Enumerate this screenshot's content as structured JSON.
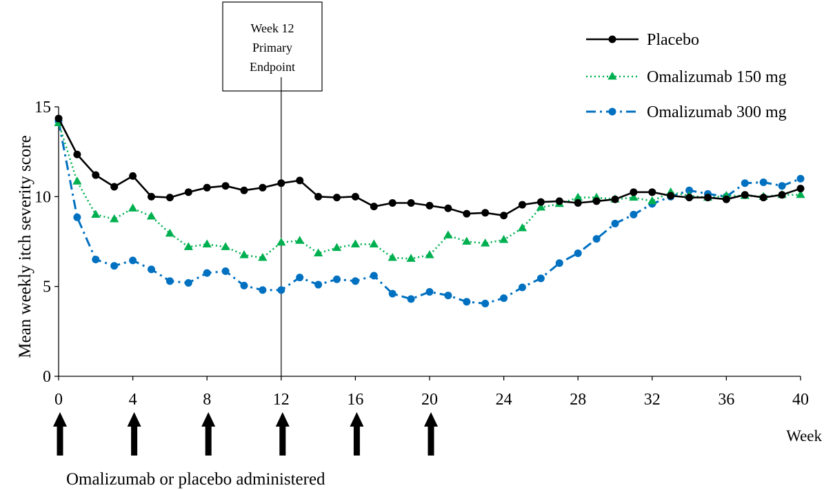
{
  "chart_data": {
    "type": "line",
    "title": "",
    "xlabel": "Week",
    "ylabel": "Mean weekly itch severity score",
    "xlim": [
      0,
      40
    ],
    "ylim": [
      0,
      15
    ],
    "x_ticks": [
      0,
      4,
      8,
      12,
      16,
      20,
      24,
      28,
      32,
      36,
      40
    ],
    "y_ticks": [
      0,
      5,
      10,
      15
    ],
    "grid": false,
    "legend_position": "top-right",
    "annotation": {
      "x": 12,
      "lines": [
        "Week 12",
        "Primary",
        "Endpoint"
      ]
    },
    "administration": {
      "label": "Omalizumab or placebo administered",
      "weeks": [
        0,
        4,
        8,
        12,
        16,
        20
      ]
    },
    "series": [
      {
        "name": "Placebo",
        "color": "#000000",
        "marker": "circle",
        "line_style": "solid",
        "x": [
          0,
          1,
          2,
          3,
          4,
          5,
          6,
          7,
          8,
          9,
          10,
          11,
          12,
          13,
          14,
          15,
          16,
          17,
          18,
          19,
          20,
          21,
          22,
          23,
          24,
          25,
          26,
          27,
          28,
          29,
          30,
          31,
          32,
          33,
          34,
          35,
          36,
          37,
          38,
          39,
          40
        ],
        "values": [
          14.35,
          12.35,
          11.2,
          10.55,
          11.15,
          10.0,
          9.95,
          10.25,
          10.5,
          10.6,
          10.35,
          10.5,
          10.75,
          10.9,
          10.0,
          9.95,
          10.0,
          9.45,
          9.65,
          9.65,
          9.5,
          9.35,
          9.05,
          9.1,
          8.95,
          9.55,
          9.7,
          9.75,
          9.65,
          9.75,
          9.85,
          10.25,
          10.25,
          10.05,
          9.95,
          9.95,
          9.85,
          10.1,
          9.95,
          10.1,
          10.45
        ]
      },
      {
        "name": "Omalizumab 150 mg",
        "color": "#00b050",
        "marker": "triangle",
        "line_style": "dotted",
        "x": [
          0,
          1,
          2,
          3,
          4,
          5,
          6,
          7,
          8,
          9,
          10,
          11,
          12,
          13,
          14,
          15,
          16,
          17,
          18,
          19,
          20,
          21,
          22,
          23,
          24,
          25,
          26,
          27,
          28,
          29,
          30,
          31,
          32,
          33,
          34,
          35,
          36,
          37,
          38,
          39,
          40
        ],
        "values": [
          14.1,
          10.85,
          9.0,
          8.75,
          9.35,
          8.9,
          7.95,
          7.2,
          7.35,
          7.2,
          6.75,
          6.6,
          7.45,
          7.55,
          6.85,
          7.15,
          7.35,
          7.35,
          6.6,
          6.55,
          6.75,
          7.85,
          7.5,
          7.4,
          7.6,
          8.25,
          9.4,
          9.6,
          9.95,
          9.95,
          9.85,
          9.95,
          9.75,
          10.25,
          10.05,
          9.95,
          10.05,
          10.05,
          10.0,
          10.1,
          10.1
        ]
      },
      {
        "name": "Omalizumab 300 mg",
        "color": "#0070c0",
        "marker": "circle",
        "line_style": "dash-dot",
        "x": [
          0,
          1,
          2,
          3,
          4,
          5,
          6,
          7,
          8,
          9,
          10,
          11,
          12,
          13,
          14,
          15,
          16,
          17,
          18,
          19,
          20,
          21,
          22,
          23,
          24,
          25,
          26,
          27,
          28,
          29,
          30,
          31,
          32,
          33,
          34,
          35,
          36,
          37,
          38,
          39,
          40
        ],
        "values": [
          14.2,
          8.85,
          6.5,
          6.15,
          6.45,
          5.95,
          5.3,
          5.2,
          5.75,
          5.85,
          5.05,
          4.8,
          4.8,
          5.5,
          5.1,
          5.4,
          5.3,
          5.6,
          4.6,
          4.3,
          4.7,
          4.5,
          4.15,
          4.05,
          4.35,
          4.95,
          5.45,
          6.3,
          6.85,
          7.65,
          8.5,
          9.0,
          9.6,
          10.0,
          10.35,
          10.15,
          10.0,
          10.75,
          10.8,
          10.6,
          11.0
        ]
      }
    ]
  }
}
